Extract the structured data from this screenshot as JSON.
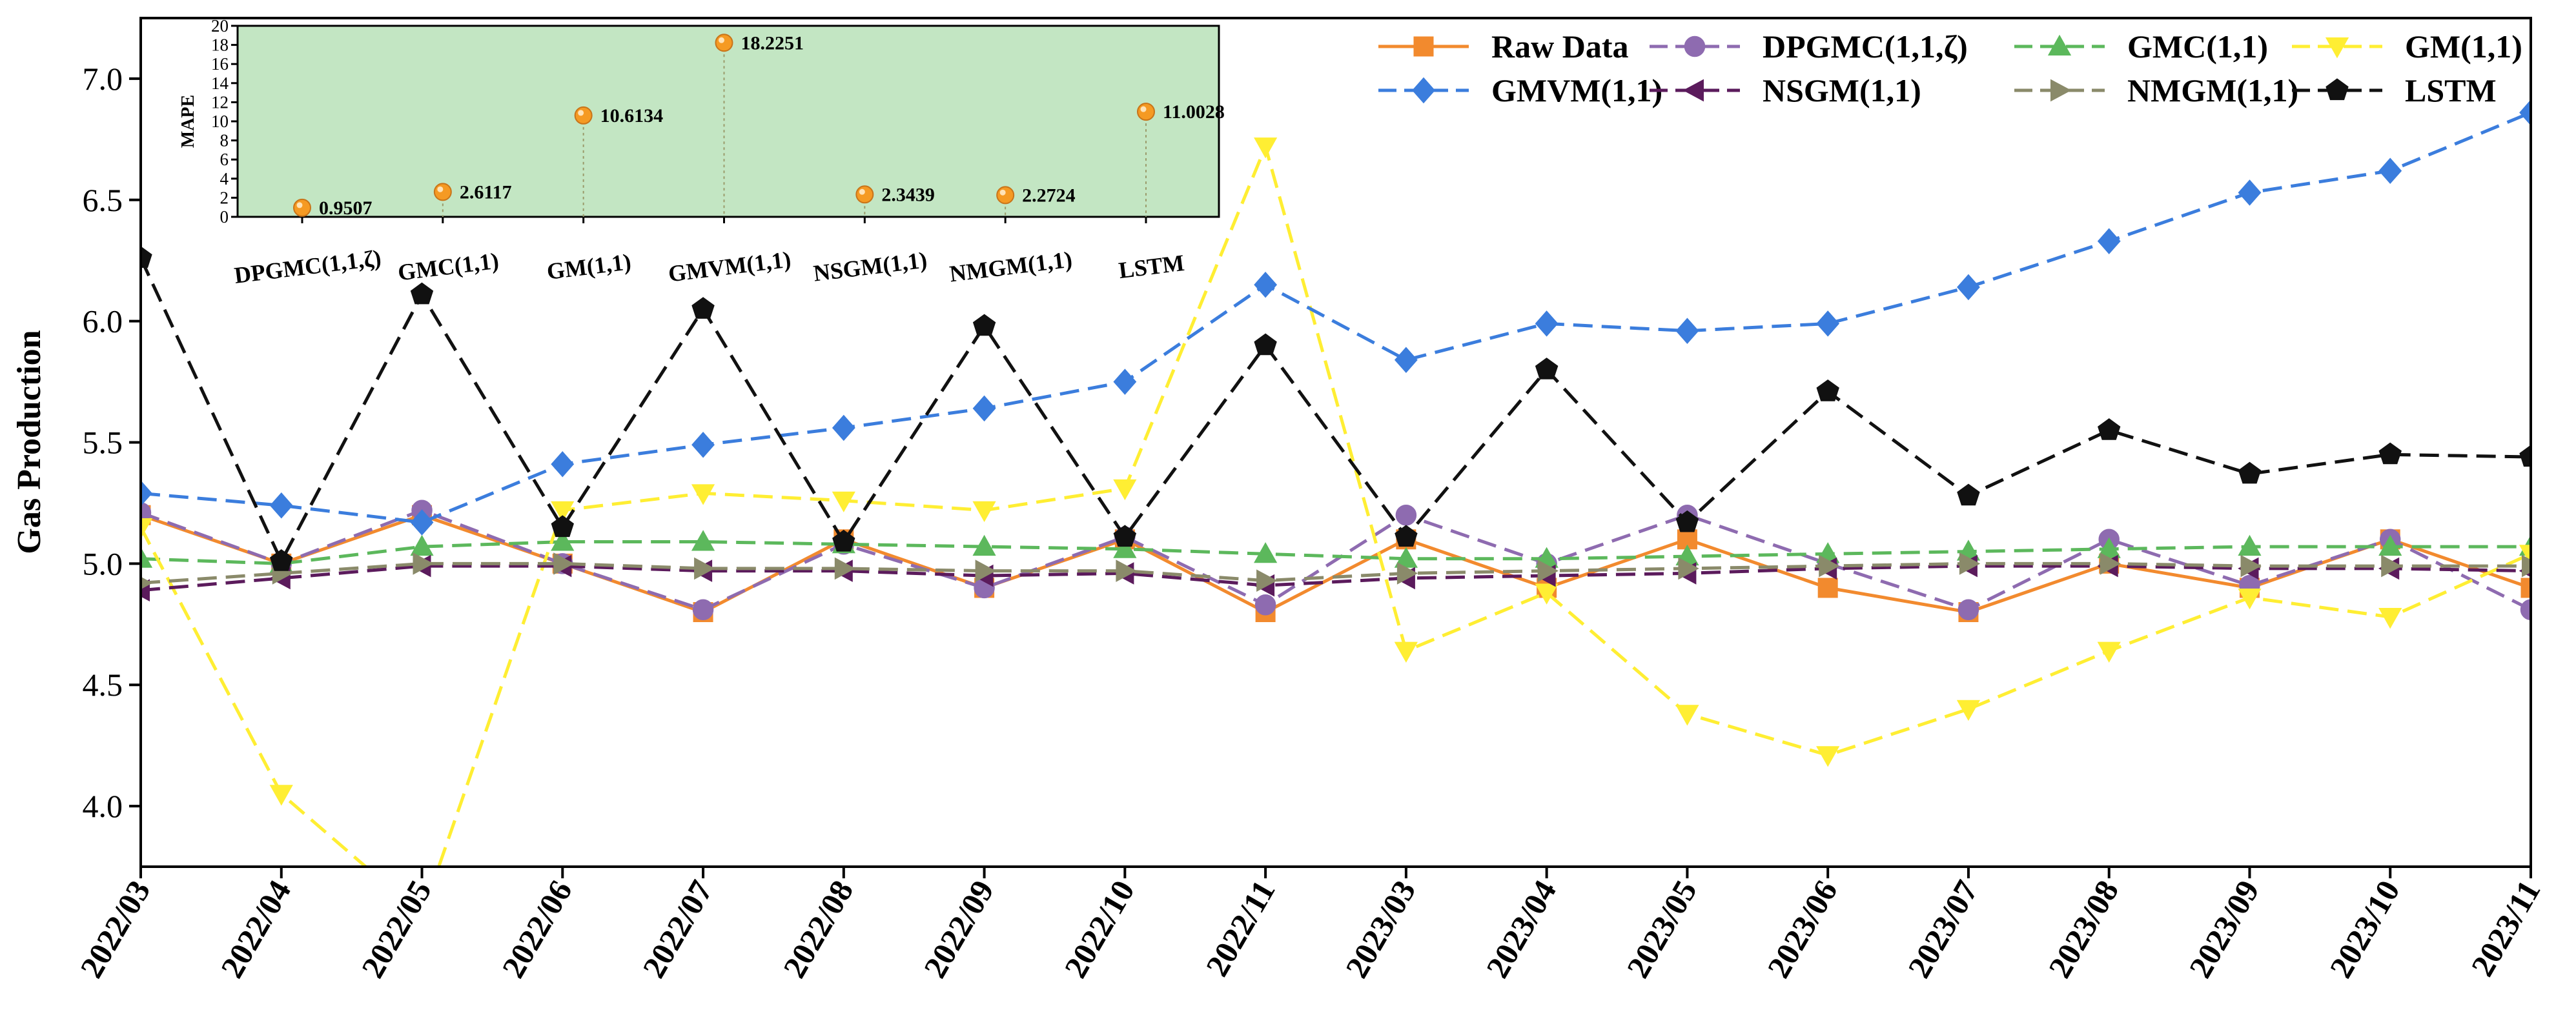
{
  "chart_data": [
    {
      "type": "line",
      "ylabel": "Gas Production",
      "xlabel": "",
      "ylim": [
        3.75,
        7.25
      ],
      "yticks": [
        "4.0",
        "4.5",
        "5.0",
        "5.5",
        "6.0",
        "6.5",
        "7.0"
      ],
      "categories": [
        "2022/03",
        "2022/04",
        "2022/05",
        "2022/06",
        "2022/07",
        "2022/08",
        "2022/09",
        "2022/10",
        "2022/11",
        "2023/03",
        "2023/04",
        "2023/05",
        "2023/06",
        "2023/07",
        "2023/08",
        "2023/09",
        "2023/10",
        "2023/11"
      ],
      "legend_position": "top-right",
      "series": [
        {
          "name": "Raw Data",
          "color": "#f28a2e",
          "marker": "square",
          "dash": "solid",
          "values": [
            5.2,
            5.0,
            5.2,
            5.0,
            4.8,
            5.1,
            4.9,
            5.1,
            4.8,
            5.1,
            4.9,
            5.1,
            4.9,
            4.8,
            5.0,
            4.9,
            5.1,
            4.9
          ]
        },
        {
          "name": "DPGMC(1,1,ζ)",
          "color": "#8e6bb0",
          "marker": "circle",
          "dash": "dashed",
          "values": [
            5.21,
            5.0,
            5.22,
            5.0,
            4.81,
            5.08,
            4.9,
            5.11,
            4.83,
            5.2,
            5.0,
            5.2,
            5.0,
            4.81,
            5.1,
            4.91,
            5.1,
            4.81
          ]
        },
        {
          "name": "GMC(1,1)",
          "color": "#5cb85c",
          "marker": "triangle-up",
          "dash": "dashed",
          "values": [
            5.02,
            5.0,
            5.07,
            5.09,
            5.09,
            5.08,
            5.07,
            5.06,
            5.04,
            5.02,
            5.02,
            5.03,
            5.04,
            5.05,
            5.06,
            5.07,
            5.07,
            5.07
          ]
        },
        {
          "name": "GM(1,1)",
          "color": "#ffee33",
          "marker": "triangle-down",
          "dash": "dashed",
          "values": [
            5.15,
            4.05,
            3.55,
            5.22,
            5.29,
            5.26,
            5.22,
            5.31,
            6.72,
            4.64,
            4.88,
            4.38,
            4.21,
            4.4,
            4.64,
            4.86,
            4.78,
            5.04
          ]
        },
        {
          "name": "GMVM(1,1)",
          "color": "#3b7ddd",
          "marker": "diamond",
          "dash": "dashed",
          "values": [
            5.29,
            5.24,
            5.17,
            5.41,
            5.49,
            5.56,
            5.64,
            5.75,
            6.15,
            5.84,
            5.99,
            5.96,
            5.99,
            6.14,
            6.33,
            6.53,
            6.62,
            6.86
          ]
        },
        {
          "name": "NSGM(1,1)",
          "color": "#5b1b5c",
          "marker": "triangle-left",
          "dash": "dashed",
          "values": [
            4.89,
            4.94,
            4.99,
            4.99,
            4.97,
            4.97,
            4.95,
            4.96,
            4.91,
            4.94,
            4.95,
            4.96,
            4.98,
            4.99,
            4.99,
            4.98,
            4.98,
            4.97
          ]
        },
        {
          "name": "NMGM(1,1)",
          "color": "#8a8a6a",
          "marker": "triangle-right",
          "dash": "dashed",
          "values": [
            4.92,
            4.96,
            5.0,
            5.0,
            4.98,
            4.98,
            4.97,
            4.97,
            4.93,
            4.96,
            4.97,
            4.98,
            4.99,
            5.0,
            5.0,
            4.99,
            4.99,
            4.99
          ]
        },
        {
          "name": "LSTM",
          "color": "#111111",
          "marker": "pentagon",
          "dash": "dashed",
          "values": [
            6.26,
            5.01,
            6.11,
            5.15,
            6.05,
            5.09,
            5.98,
            5.11,
            5.9,
            5.11,
            5.8,
            5.17,
            5.71,
            5.28,
            5.55,
            5.37,
            5.45,
            5.44
          ]
        }
      ]
    },
    {
      "type": "scatter",
      "ylabel": "MAPE",
      "ylim": [
        0,
        20
      ],
      "yticks": [
        "0",
        "2",
        "4",
        "6",
        "8",
        "10",
        "12",
        "14",
        "16",
        "18",
        "20"
      ],
      "background": "#c3e6c3",
      "point_color": "#f59a23",
      "categories": [
        "DPGMC(1,1,ζ)",
        "GMC(1,1)",
        "GM(1,1)",
        "GMVM(1,1)",
        "NSGM(1,1)",
        "NMGM(1,1)",
        "LSTM"
      ],
      "values": [
        0.9507,
        2.6117,
        10.6134,
        18.2251,
        2.3439,
        2.2724,
        11.0028
      ],
      "value_labels": [
        "0.9507",
        "2.6117",
        "10.6134",
        "18.2251",
        "2.3439",
        "2.2724",
        "11.0028"
      ]
    }
  ]
}
